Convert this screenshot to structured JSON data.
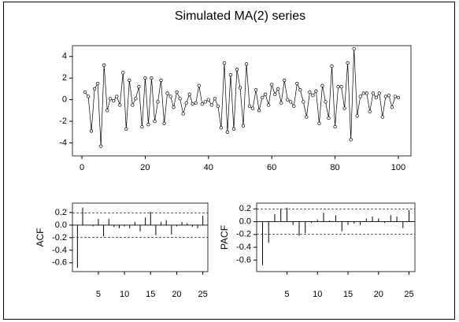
{
  "chart_data": [
    {
      "type": "line",
      "title": "Simulated MA(2) series",
      "x": [
        1,
        2,
        3,
        4,
        5,
        6,
        7,
        8,
        9,
        10,
        11,
        12,
        13,
        14,
        15,
        16,
        17,
        18,
        19,
        20,
        21,
        22,
        23,
        24,
        25,
        26,
        27,
        28,
        29,
        30,
        31,
        32,
        33,
        34,
        35,
        36,
        37,
        38,
        39,
        40,
        41,
        42,
        43,
        44,
        45,
        46,
        47,
        48,
        49,
        50,
        51,
        52,
        53,
        54,
        55,
        56,
        57,
        58,
        59,
        60,
        61,
        62,
        63,
        64,
        65,
        66,
        67,
        68,
        69,
        70,
        71,
        72,
        73,
        74,
        75,
        76,
        77,
        78,
        79,
        80,
        81,
        82,
        83,
        84,
        85,
        86,
        87,
        88,
        89,
        90,
        91,
        92,
        93,
        94,
        95,
        96,
        97,
        98,
        99,
        100
      ],
      "values": [
        0.7,
        0.3,
        -2.9,
        1.0,
        1.5,
        -4.3,
        3.2,
        -1.0,
        0.1,
        -0.1,
        0.3,
        -0.5,
        2.5,
        -2.7,
        1.8,
        -0.5,
        0.1,
        1.2,
        -2.5,
        2.0,
        -2.3,
        2.0,
        -2.0,
        -0.2,
        1.8,
        -2.2,
        0.6,
        0.3,
        -0.7,
        0.7,
        0.1,
        -1.3,
        -0.3,
        0.5,
        -0.4,
        -0.3,
        1.3,
        -0.4,
        -0.2,
        0.0,
        -0.5,
        0.1,
        -0.6,
        -2.6,
        3.4,
        -3.0,
        2.3,
        -2.7,
        2.8,
        1.1,
        -2.4,
        3.3,
        -0.6,
        -0.8,
        0.9,
        -1.0,
        0.2,
        0.5,
        -0.5,
        1.4,
        0.5,
        1.0,
        -0.3,
        1.8,
        0.0,
        -0.2,
        -0.6,
        1.5,
        0.9,
        -0.2,
        -1.6,
        0.7,
        0.4,
        0.8,
        -2.2,
        1.3,
        -0.2,
        -1.7,
        3.1,
        -2.5,
        1.2,
        1.2,
        -0.8,
        3.4,
        -3.7,
        4.7,
        -1.5,
        0.3,
        0.6,
        0.6,
        -1.1,
        0.6,
        0.2,
        0.6,
        -1.6,
        0.3,
        0.4,
        -0.7,
        0.3,
        0.2
      ],
      "color": "#000000",
      "xlim": [
        -3,
        104
      ],
      "xticks": [
        0,
        20,
        40,
        60,
        80,
        100
      ],
      "ylim": [
        -5.2,
        5.0
      ],
      "yticks": [
        4,
        2,
        0,
        -2,
        -4
      ]
    },
    {
      "type": "bar",
      "ylabel": "ACF",
      "x": [
        1,
        2,
        3,
        4,
        5,
        6,
        7,
        8,
        9,
        10,
        11,
        12,
        13,
        14,
        15,
        16,
        17,
        18,
        19,
        20,
        21,
        22,
        23,
        24,
        25
      ],
      "values": [
        -0.68,
        0.28,
        0.0,
        -0.02,
        0.1,
        -0.18,
        0.1,
        -0.03,
        -0.05,
        -0.02,
        -0.05,
        0.05,
        -0.1,
        0.12,
        0.21,
        -0.16,
        0.05,
        0.08,
        -0.15,
        -0.02,
        0.05,
        0.03,
        -0.03,
        -0.05,
        0.15
      ],
      "color": "#000000",
      "conf_limit": 0.196,
      "xlim": [
        0.04,
        25.96
      ],
      "xticks": [
        5,
        10,
        15,
        20,
        25
      ],
      "ylim": [
        -0.74,
        0.35
      ],
      "yticks": [
        0.2,
        {
          "value": 0,
          "label": "0.0"
        },
        -0.2,
        -0.4,
        -0.6
      ]
    },
    {
      "type": "bar",
      "ylabel": "PACF",
      "x": [
        1,
        2,
        3,
        4,
        5,
        6,
        7,
        8,
        9,
        10,
        11,
        12,
        13,
        14,
        15,
        16,
        17,
        18,
        19,
        20,
        21,
        22,
        23,
        24,
        25
      ],
      "values": [
        -0.68,
        -0.33,
        0.12,
        0.2,
        0.22,
        -0.05,
        -0.22,
        -0.18,
        -0.02,
        0.03,
        0.14,
        0.02,
        0.1,
        -0.15,
        -0.05,
        -0.03,
        -0.05,
        0.05,
        0.08,
        0.05,
        -0.02,
        0.1,
        0.08,
        -0.1,
        0.18
      ],
      "color": "#000000",
      "conf_limit": 0.196,
      "xlim": [
        0.04,
        25.96
      ],
      "xticks": [
        5,
        10,
        15,
        20,
        25
      ],
      "ylim": [
        -0.78,
        0.29
      ],
      "yticks": [
        0.2,
        {
          "value": 0,
          "label": "0.0"
        },
        -0.2,
        -0.4,
        -0.6
      ]
    }
  ]
}
